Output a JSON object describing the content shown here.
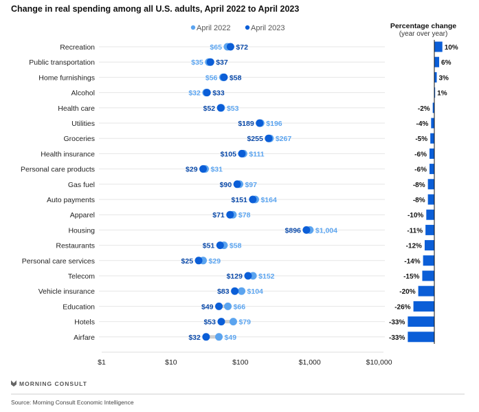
{
  "chart_data": {
    "type": "dot-plot-with-bar",
    "title": "Change in real spending among all U.S. adults, April 2022 to April 2023",
    "legend": [
      {
        "name": "April 2022",
        "color": "#5ba4ef"
      },
      {
        "name": "April 2023",
        "color": "#0b5ed7"
      }
    ],
    "legend_position": "top-center",
    "x_scale": "log",
    "xlim": [
      1,
      10000
    ],
    "x_ticks": [
      {
        "value": 1,
        "label": "$1"
      },
      {
        "value": 10,
        "label": "$10"
      },
      {
        "value": 100,
        "label": "$100"
      },
      {
        "value": 1000,
        "label": "$1,000"
      },
      {
        "value": 10000,
        "label": "$10,000"
      }
    ],
    "bar_panel_title": "Percentage change",
    "bar_panel_subtitle": "(year over year)",
    "categories": [
      "Recreation",
      "Public transportation",
      "Home furnishings",
      "Alcohol",
      "Health care",
      "Utilities",
      "Groceries",
      "Health insurance",
      "Personal care products",
      "Gas fuel",
      "Auto payments",
      "Apparel",
      "Housing",
      "Restaurants",
      "Personal care services",
      "Telecom",
      "Vehicle insurance",
      "Education",
      "Hotels",
      "Airfare"
    ],
    "series": [
      {
        "name": "April 2022",
        "values": [
          65,
          35,
          56,
          32,
          53,
          196,
          267,
          111,
          31,
          97,
          164,
          78,
          1004,
          58,
          29,
          152,
          104,
          66,
          79,
          49
        ],
        "labels": [
          "$65",
          "$35",
          "$56",
          "$32",
          "$53",
          "$196",
          "$267",
          "$111",
          "$31",
          "$97",
          "$164",
          "$78",
          "$1,004",
          "$58",
          "$29",
          "$152",
          "$104",
          "$66",
          "$79",
          "$49"
        ]
      },
      {
        "name": "April 2023",
        "values": [
          72,
          37,
          58,
          33,
          52,
          189,
          255,
          105,
          29,
          90,
          151,
          71,
          896,
          51,
          25,
          129,
          83,
          49,
          53,
          32
        ],
        "labels": [
          "$72",
          "$37",
          "$58",
          "$33",
          "$52",
          "$189",
          "$255",
          "$105",
          "$29",
          "$90",
          "$151",
          "$71",
          "$896",
          "$51",
          "$25",
          "$129",
          "$83",
          "$49",
          "$53",
          "$32"
        ]
      }
    ],
    "pct_change": [
      10,
      6,
      3,
      1,
      -2,
      -4,
      -5,
      -6,
      -6,
      -8,
      -8,
      -10,
      -11,
      -12,
      -14,
      -15,
      -20,
      -26,
      -33,
      -33
    ],
    "pct_labels": [
      "10%",
      "6%",
      "3%",
      "1%",
      "-2%",
      "-4%",
      "-5%",
      "-6%",
      "-6%",
      "-8%",
      "-8%",
      "-10%",
      "-11%",
      "-12%",
      "-14%",
      "-15%",
      "-20%",
      "-26%",
      "-33%",
      "-33%"
    ],
    "bar_color": "#0b5ed7"
  },
  "footer": {
    "logo_text": "MORNING CONSULT",
    "source": "Source: Morning Consult Economic Intelligence"
  }
}
